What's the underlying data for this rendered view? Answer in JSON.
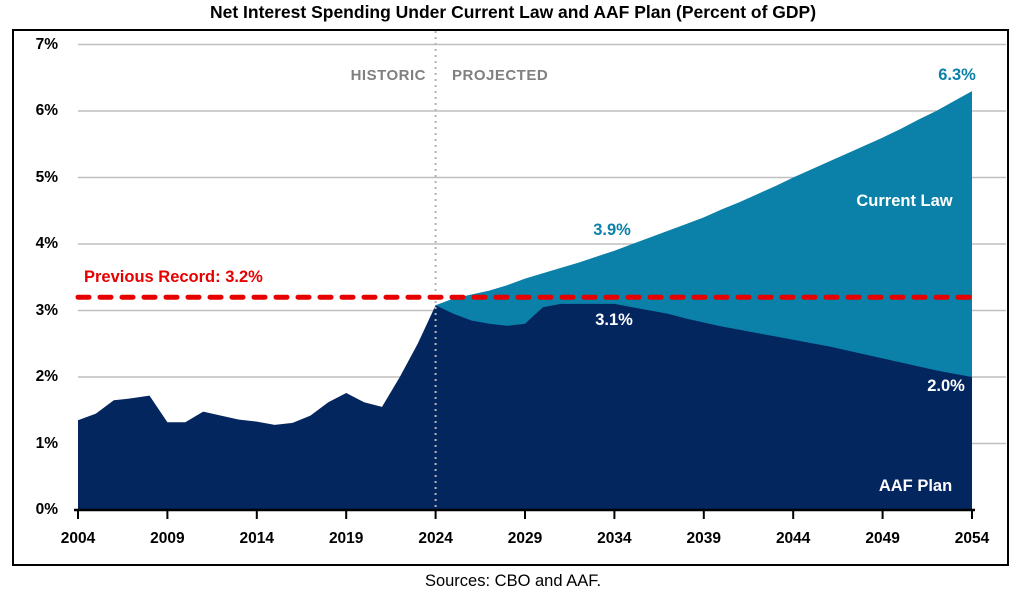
{
  "title": "Net Interest Spending Under Current Law and AAF Plan (Percent of GDP)",
  "source": "Sources: CBO and AAF.",
  "chart_data": {
    "type": "area",
    "title": "Net Interest Spending Under Current Law and AAF Plan (Percent of GDP)",
    "xlabel": "",
    "ylabel": "",
    "xlim": [
      2004,
      2054
    ],
    "ylim": [
      0,
      7
    ],
    "grid": true,
    "legend_position": "inline-labels",
    "y_tick_values": [
      0,
      1,
      2,
      3,
      4,
      5,
      6,
      7
    ],
    "y_tick_labels": [
      "0%",
      "1%",
      "2%",
      "3%",
      "4%",
      "5%",
      "6%",
      "7%"
    ],
    "x_tick_values": [
      2004,
      2009,
      2014,
      2019,
      2024,
      2029,
      2034,
      2039,
      2044,
      2049,
      2054
    ],
    "x_tick_labels": [
      "2004",
      "2009",
      "2014",
      "2019",
      "2024",
      "2029",
      "2034",
      "2039",
      "2044",
      "2049",
      "2054"
    ],
    "series": [
      {
        "name": "Current Law",
        "color": "#0b81a9",
        "start_year": 2024,
        "values": [
          3.08,
          3.18,
          3.24,
          3.3,
          3.38,
          3.48,
          3.56,
          3.64,
          3.72,
          3.81,
          3.9,
          4.0,
          4.1,
          4.2,
          4.3,
          4.4,
          4.52,
          4.63,
          4.75,
          4.87,
          5.0,
          5.12,
          5.24,
          5.36,
          5.48,
          5.6,
          5.73,
          5.87,
          6.0,
          6.15,
          6.3
        ]
      },
      {
        "name": "AAF Plan",
        "color": "#04265f",
        "start_year": 2004,
        "values": [
          1.35,
          1.45,
          1.65,
          1.68,
          1.72,
          1.32,
          1.32,
          1.48,
          1.42,
          1.36,
          1.33,
          1.28,
          1.31,
          1.42,
          1.62,
          1.76,
          1.62,
          1.55,
          2.0,
          2.5,
          3.08,
          2.95,
          2.85,
          2.8,
          2.77,
          2.8,
          3.05,
          3.1,
          3.1,
          3.1,
          3.1,
          3.05,
          3.0,
          2.95,
          2.88,
          2.82,
          2.76,
          2.71,
          2.66,
          2.61,
          2.56,
          2.51,
          2.46,
          2.4,
          2.34,
          2.28,
          2.22,
          2.16,
          2.1,
          2.05,
          2.0
        ]
      }
    ],
    "reference_line": {
      "label": "Previous Record: 3.2%",
      "value": 3.2,
      "color": "#e60000",
      "style": "dashed"
    },
    "divider": {
      "x": 2024,
      "style": "dotted",
      "color": "#b3b3b3",
      "left_label": "HISTORIC",
      "right_label": "PROJECTED"
    },
    "annotations": [
      {
        "text": "3.9%",
        "series": "Current Law",
        "year": 2034,
        "value": 3.9
      },
      {
        "text": "3.1%",
        "series": "AAF Plan",
        "year": 2034,
        "value": 3.1
      },
      {
        "text": "6.3%",
        "series": "Current Law",
        "year": 2054,
        "value": 6.3
      },
      {
        "text": "2.0%",
        "series": "AAF Plan",
        "year": 2054,
        "value": 2.0
      }
    ]
  }
}
